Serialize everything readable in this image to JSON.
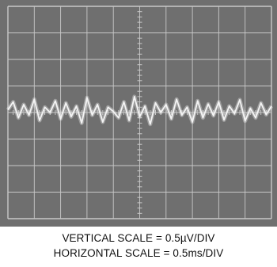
{
  "chart_data": {
    "type": "line",
    "title": "",
    "screen": {
      "divisions_x": 10,
      "divisions_y": 8,
      "minor_ticks_per_division": 5
    },
    "x_scale": "0.5ms/DIV",
    "y_scale": "0.5µV/DIV",
    "xlim": [
      0,
      5
    ],
    "ylim": [
      -2,
      2
    ],
    "x_unit": "ms",
    "y_unit": "µV",
    "grid": true,
    "series": [
      {
        "trace_color": "#f4f4f4",
        "baseline": 0.0,
        "x": [
          0.0,
          0.1,
          0.2,
          0.3,
          0.4,
          0.5,
          0.6,
          0.7,
          0.8,
          0.9,
          1.0,
          1.1,
          1.2,
          1.3,
          1.4,
          1.5,
          1.6,
          1.7,
          1.8,
          1.9,
          2.0,
          2.1,
          2.2,
          2.3,
          2.4,
          2.5,
          2.6,
          2.7,
          2.8,
          2.9,
          3.0,
          3.1,
          3.2,
          3.3,
          3.4,
          3.5,
          3.6,
          3.7,
          3.8,
          3.9,
          4.0,
          4.1,
          4.2,
          4.3,
          4.4,
          4.5,
          4.6,
          4.7,
          4.8,
          4.9,
          5.0
        ],
        "values": [
          0.05,
          0.2,
          -0.1,
          0.15,
          -0.05,
          0.25,
          -0.15,
          0.1,
          0.0,
          0.22,
          -0.12,
          0.18,
          -0.08,
          0.12,
          -0.2,
          0.28,
          -0.05,
          0.15,
          -0.18,
          0.1,
          0.02,
          -0.1,
          0.2,
          -0.15,
          0.3,
          -0.08,
          0.12,
          -0.22,
          0.18,
          0.0,
          0.15,
          -0.12,
          0.25,
          -0.05,
          0.1,
          -0.18,
          0.22,
          -0.1,
          0.16,
          -0.06,
          0.2,
          -0.14,
          0.12,
          -0.02,
          0.24,
          -0.16,
          0.08,
          -0.1,
          0.18,
          -0.04,
          0.12
        ]
      }
    ],
    "caption_lines": [
      "VERTICAL SCALE = 0.5µV/DIV",
      "HORIZONTAL SCALE = 0.5ms/DIV"
    ],
    "colors": {
      "screen_background": "#6f6f6f",
      "grid": "#c8c8c8",
      "trace": "#f4f4f4"
    }
  }
}
